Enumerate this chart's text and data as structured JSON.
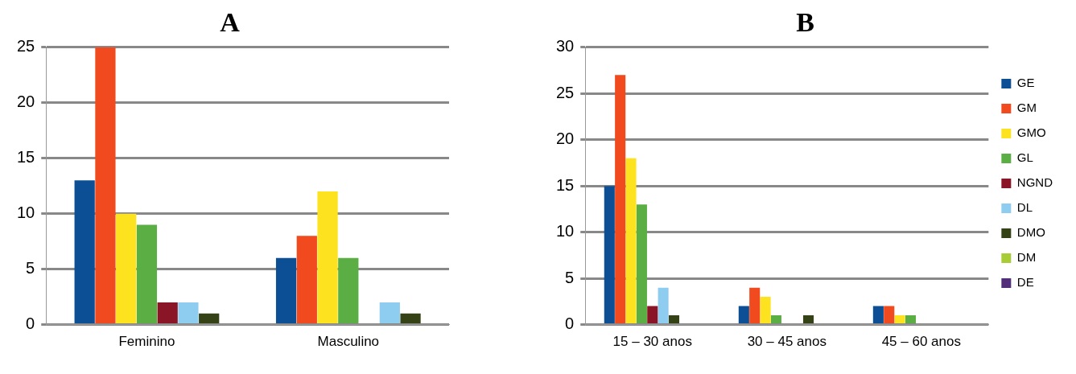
{
  "chart_data": [
    {
      "type": "bar",
      "title": "A",
      "categories": [
        "Feminino",
        "Masculino"
      ],
      "ylim": [
        0,
        25
      ],
      "yticks": [
        0,
        5,
        10,
        15,
        20,
        25
      ],
      "grid": "y",
      "legend": false,
      "series": [
        {
          "color": "#0d4f94",
          "values": [
            13,
            6
          ]
        },
        {
          "color": "#f04a1e",
          "values": [
            25,
            8
          ]
        },
        {
          "color": "#fde31f",
          "values": [
            10,
            12
          ]
        },
        {
          "color": "#5aae44",
          "values": [
            9,
            6
          ]
        },
        {
          "color": "#8a1527",
          "values": [
            2,
            0
          ]
        },
        {
          "color": "#8fcdf0",
          "values": [
            2,
            2
          ]
        },
        {
          "color": "#344216",
          "values": [
            1,
            1
          ]
        }
      ]
    },
    {
      "type": "bar",
      "title": "B",
      "categories": [
        "15 – 30 anos",
        "30 – 45 anos",
        "45 – 60 anos"
      ],
      "ylim": [
        0,
        30
      ],
      "yticks": [
        0,
        5,
        10,
        15,
        20,
        25,
        30
      ],
      "grid": "y",
      "legend": "right",
      "series": [
        {
          "name": "GE",
          "color": "#0d4f94",
          "values": [
            15,
            2,
            2
          ]
        },
        {
          "name": "GM",
          "color": "#f04a1e",
          "values": [
            27,
            4,
            2
          ]
        },
        {
          "name": "GMO",
          "color": "#fde31f",
          "values": [
            18,
            3,
            1
          ]
        },
        {
          "name": "GL",
          "color": "#5aae44",
          "values": [
            13,
            1,
            1
          ]
        },
        {
          "name": "NGND",
          "color": "#8a1527",
          "values": [
            2,
            0,
            0
          ]
        },
        {
          "name": "DL",
          "color": "#8fcdf0",
          "values": [
            4,
            0,
            0
          ]
        },
        {
          "name": "DMO",
          "color": "#344216",
          "values": [
            1,
            1,
            0
          ]
        },
        {
          "name": "DM",
          "color": "#a8cc35",
          "values": [
            0,
            0,
            0
          ]
        },
        {
          "name": "DE",
          "color": "#512d7a",
          "values": [
            0,
            0,
            0
          ]
        }
      ]
    }
  ]
}
